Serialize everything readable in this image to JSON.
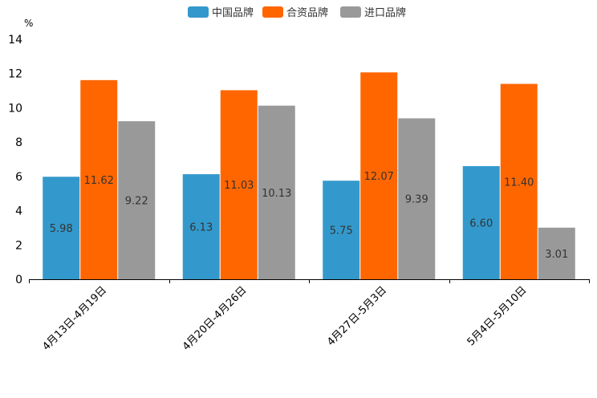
{
  "chart_data": {
    "type": "bar",
    "title": "",
    "ylabel": "%",
    "xlabel": "",
    "ylim": [
      0,
      14
    ],
    "yticks": [
      0,
      2,
      4,
      6,
      8,
      10,
      12,
      14
    ],
    "categories": [
      "4月13日-4月19日",
      "4月20日-4月26日",
      "4月27日-5月3日",
      "5月4日-5月10日"
    ],
    "series": [
      {
        "name": "中国品牌",
        "color": "#3399cc",
        "values": [
          5.98,
          6.13,
          5.75,
          6.6
        ]
      },
      {
        "name": "合资品牌",
        "color": "#ff6600",
        "values": [
          11.62,
          11.03,
          12.07,
          11.4
        ]
      },
      {
        "name": "进口品牌",
        "color": "#999999",
        "values": [
          9.22,
          10.13,
          9.39,
          3.01
        ]
      }
    ],
    "value_labels": [
      [
        "5.98",
        "6.13",
        "5.75",
        "6.60"
      ],
      [
        "11.62",
        "11.03",
        "12.07",
        "11.40"
      ],
      [
        "9.22",
        "10.13",
        "9.39",
        "3.01"
      ]
    ],
    "legend_position": "top-center",
    "grid": false
  }
}
